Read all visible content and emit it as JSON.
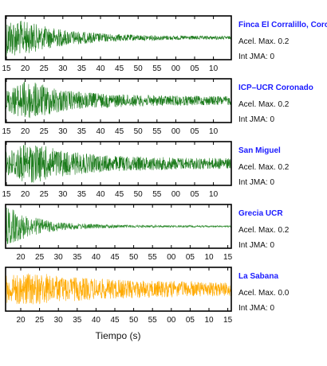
{
  "chart_data": {
    "type": "line",
    "xlabel": "Tiempo (s)",
    "panels": [
      {
        "name": "Finca El Corralillo, Coro",
        "acel_label": "Acel. Max. 0.2",
        "jma_label": "Int JMA: 0",
        "color": "#1a7a1a",
        "ticks": [
          "15",
          "20",
          "25",
          "30",
          "35",
          "40",
          "45",
          "50",
          "55",
          "00",
          "05",
          "10"
        ],
        "amplitude_profile": [
          1.0,
          0.8,
          0.55,
          0.38,
          0.28,
          0.2,
          0.16,
          0.13,
          0.11,
          0.1,
          0.09,
          0.08
        ]
      },
      {
        "name": "ICP–UCR Coronado",
        "acel_label": "Acel. Max. 0.2",
        "jma_label": "Int JMA: 0",
        "color": "#1a7a1a",
        "ticks": [
          "15",
          "20",
          "25",
          "30",
          "35",
          "40",
          "45",
          "50",
          "55",
          "00",
          "05",
          "10"
        ],
        "amplitude_profile": [
          0.5,
          1.0,
          0.75,
          0.5,
          0.4,
          0.34,
          0.3,
          0.27,
          0.25,
          0.24,
          0.23,
          0.22
        ]
      },
      {
        "name": "San Miguel",
        "acel_label": "Acel. Max. 0.2",
        "jma_label": "Int JMA: 0",
        "color": "#1a7a1a",
        "ticks": [
          "15",
          "20",
          "25",
          "30",
          "35",
          "40",
          "45",
          "50",
          "55",
          "00",
          "05",
          "10"
        ],
        "amplitude_profile": [
          0.6,
          1.0,
          0.85,
          0.6,
          0.48,
          0.4,
          0.36,
          0.33,
          0.31,
          0.29,
          0.28,
          0.27
        ]
      },
      {
        "name": "Grecia UCR",
        "acel_label": "Acel. Max. 0.2",
        "jma_label": "Int JMA: 0",
        "color": "#2e8b2e",
        "ticks": [
          "20",
          "25",
          "30",
          "35",
          "40",
          "45",
          "50",
          "55",
          "00",
          "05",
          "10",
          "15"
        ],
        "amplitude_profile": [
          1.0,
          0.55,
          0.3,
          0.18,
          0.12,
          0.09,
          0.07,
          0.06,
          0.05,
          0.05,
          0.04,
          0.04
        ]
      },
      {
        "name": "La Sabana",
        "acel_label": "Acel. Max. 0.0",
        "jma_label": "Int JMA: 0",
        "color": "#ffaa00",
        "ticks": [
          "20",
          "25",
          "30",
          "35",
          "40",
          "45",
          "50",
          "55",
          "00",
          "05",
          "10",
          "15"
        ],
        "amplitude_profile": [
          0.7,
          0.8,
          0.75,
          0.6,
          0.55,
          0.5,
          0.45,
          0.42,
          0.4,
          0.38,
          0.36,
          0.35
        ]
      }
    ]
  }
}
